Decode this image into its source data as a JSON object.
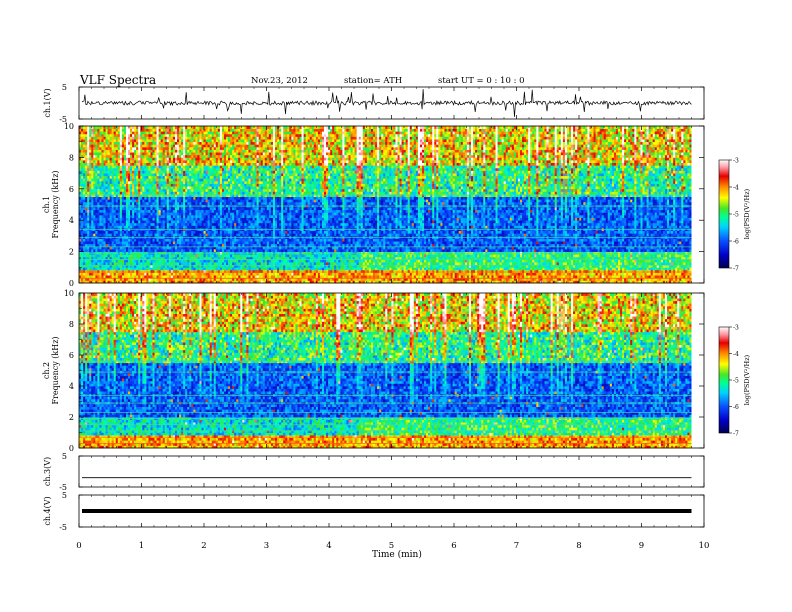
{
  "header": {
    "title": "VLF  Spectra",
    "date": "Nov.23, 2012",
    "station": "station= ATH",
    "start": "start  UT  =    0  : 10 : 0"
  },
  "chart_data": [
    {
      "type": "line",
      "panel": "ch1-waveform",
      "ylabel": "ch.1(V)",
      "ylim": [
        -5,
        5
      ],
      "yticks": [
        "5",
        "-5"
      ],
      "description_values": {
        "baseline": 0,
        "typical_spikes": [
          -2,
          2
        ]
      }
    },
    {
      "type": "heatmap",
      "panel": "ch1-spectrogram",
      "ylabel_channel": "ch.1",
      "ylabel": "Frequency  (kHz)",
      "ylim": [
        0,
        10
      ],
      "yticks": [
        "0",
        "2",
        "4",
        "6",
        "8",
        "10"
      ],
      "colorbar_label": "log(PSD(V²/Hz)",
      "colorbar_ticks": [
        "-3",
        "-4",
        "-5",
        "-6",
        "-7"
      ],
      "zlim": [
        -7,
        -3
      ],
      "step_time_min": 4.5
    },
    {
      "type": "heatmap",
      "panel": "ch2-spectrogram",
      "ylabel_channel": "ch.2",
      "ylabel": "Frequency  (kHz)",
      "ylim": [
        0,
        10
      ],
      "yticks": [
        "0",
        "2",
        "4",
        "6",
        "8",
        "10"
      ],
      "colorbar_label": "log(PSD(V²/Hz)",
      "colorbar_ticks": [
        "-3",
        "-4",
        "-5",
        "-6",
        "-7"
      ],
      "zlim": [
        -7,
        -3
      ],
      "step_time_min": 4.5
    },
    {
      "type": "line",
      "panel": "ch3-waveform",
      "ylabel": "ch.3(V)",
      "ylim": [
        -5,
        5
      ],
      "yticks": [
        "5",
        "-5"
      ],
      "description_values": {
        "baseline": -2
      }
    },
    {
      "type": "line",
      "panel": "ch4-waveform",
      "ylabel": "ch.4(V)",
      "ylim": [
        -5,
        5
      ],
      "yticks": [
        "5",
        "-5"
      ],
      "description_values": {
        "baseline": 0
      }
    }
  ],
  "x_axis": {
    "label": "Time  (min)",
    "ticks": [
      "0",
      "1",
      "2",
      "3",
      "4",
      "5",
      "6",
      "7",
      "8",
      "9",
      "10"
    ],
    "xlim": [
      0,
      10
    ],
    "data_end": 9.8
  },
  "colors": {
    "colormap": [
      "#000050",
      "#0000b4",
      "#0a46ff",
      "#00c8ff",
      "#00ffb4",
      "#32e632",
      "#ffff00",
      "#ff8c00",
      "#e60000",
      "#ff96a0",
      "#ffffff"
    ]
  }
}
